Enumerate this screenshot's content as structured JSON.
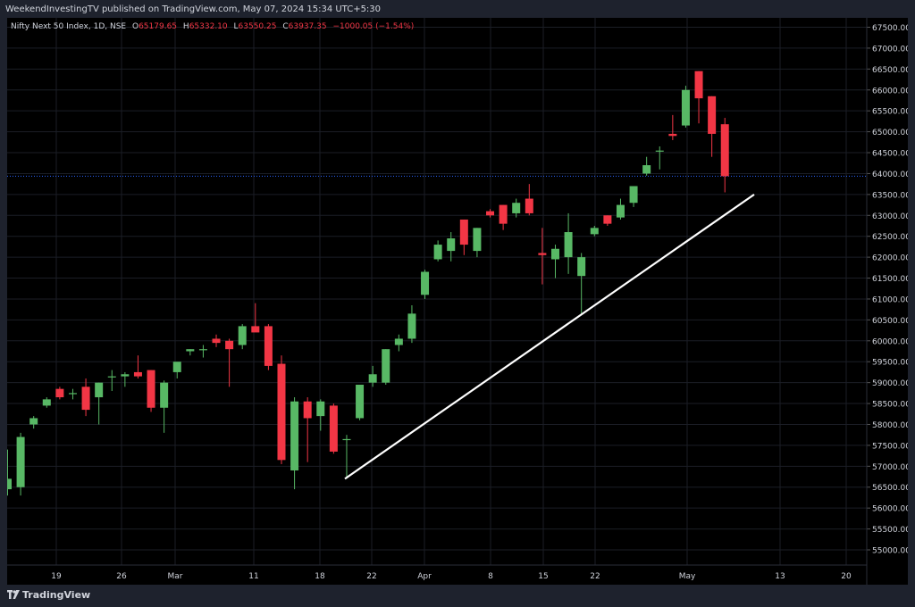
{
  "header": {
    "text": "WeekendInvestingTV published on TradingView.com, May 07, 2024 15:34 UTC+5:30"
  },
  "legend": {
    "symbol": "Nifty Next 50 Index, 1D, NSE",
    "o_label": "O",
    "o_value": "65179.65",
    "h_label": "H",
    "h_value": "65332.10",
    "l_label": "L",
    "l_value": "63550.25",
    "c_label": "C",
    "c_value": "63937.35",
    "change": "−1000.05 (−1.54%)"
  },
  "footer": {
    "brand": "TradingView"
  },
  "colors": {
    "up": "#58b865",
    "down": "#f23645",
    "background": "#000000",
    "grid": "#1b1e26",
    "text": "#d1d4dc",
    "trendline": "#ffffff",
    "last_price_line": "#2962ff"
  },
  "chart_data": {
    "type": "candlestick",
    "ylim": [
      54500,
      67800
    ],
    "y_ticks": [
      "55000.00",
      "55500.00",
      "56000.00",
      "56500.00",
      "57000.00",
      "57500.00",
      "58000.00",
      "58500.00",
      "59000.00",
      "59500.00",
      "60000.00",
      "60500.00",
      "61000.00",
      "61500.00",
      "62000.00",
      "62500.00",
      "63000.00",
      "63500.00",
      "64000.00",
      "64500.00",
      "65000.00",
      "65500.00",
      "66000.00",
      "66500.00",
      "67000.00",
      "67500.00"
    ],
    "x_ticks": [
      "19",
      "26",
      "Mar",
      "11",
      "18",
      "22",
      "Apr",
      "8",
      "15",
      "22",
      "May",
      "13",
      "20"
    ],
    "last_price": 63937.35,
    "candles": [
      {
        "o": 56450,
        "h": 57400,
        "l": 56300,
        "c": 56700
      },
      {
        "o": 56500,
        "h": 57800,
        "l": 56300,
        "c": 57700
      },
      {
        "o": 58000,
        "h": 58200,
        "l": 57900,
        "c": 58150
      },
      {
        "o": 58450,
        "h": 58650,
        "l": 58400,
        "c": 58600
      },
      {
        "o": 58850,
        "h": 58900,
        "l": 58600,
        "c": 58650
      },
      {
        "o": 58750,
        "h": 58850,
        "l": 58600,
        "c": 58750
      },
      {
        "o": 58900,
        "h": 59100,
        "l": 58200,
        "c": 58350
      },
      {
        "o": 58650,
        "h": 59000,
        "l": 58000,
        "c": 59000
      },
      {
        "o": 59150,
        "h": 59300,
        "l": 58800,
        "c": 59150
      },
      {
        "o": 59150,
        "h": 59250,
        "l": 58900,
        "c": 59200
      },
      {
        "o": 59250,
        "h": 59650,
        "l": 59100,
        "c": 59150
      },
      {
        "o": 59300,
        "h": 59300,
        "l": 58300,
        "c": 58400
      },
      {
        "o": 58400,
        "h": 59050,
        "l": 57800,
        "c": 59000
      },
      {
        "o": 59250,
        "h": 59400,
        "l": 59100,
        "c": 59500
      },
      {
        "o": 59750,
        "h": 59800,
        "l": 59650,
        "c": 59800
      },
      {
        "o": 59800,
        "h": 59900,
        "l": 59600,
        "c": 59800
      },
      {
        "o": 60050,
        "h": 60150,
        "l": 59850,
        "c": 59950
      },
      {
        "o": 60000,
        "h": 60050,
        "l": 58900,
        "c": 59800
      },
      {
        "o": 59900,
        "h": 60400,
        "l": 59800,
        "c": 60350
      },
      {
        "o": 60350,
        "h": 60900,
        "l": 60300,
        "c": 60200
      },
      {
        "o": 60350,
        "h": 60400,
        "l": 59300,
        "c": 59400
      },
      {
        "o": 59450,
        "h": 59650,
        "l": 57050,
        "c": 57150
      },
      {
        "o": 56900,
        "h": 58650,
        "l": 56450,
        "c": 58550
      },
      {
        "o": 58550,
        "h": 58650,
        "l": 57100,
        "c": 58150
      },
      {
        "o": 58200,
        "h": 58600,
        "l": 57850,
        "c": 58550
      },
      {
        "o": 58450,
        "h": 58500,
        "l": 57300,
        "c": 57350
      },
      {
        "o": 57650,
        "h": 57750,
        "l": 56700,
        "c": 57650
      },
      {
        "o": 58150,
        "h": 58950,
        "l": 58100,
        "c": 58950
      },
      {
        "o": 59000,
        "h": 59400,
        "l": 58900,
        "c": 59200
      },
      {
        "o": 59000,
        "h": 59800,
        "l": 58950,
        "c": 59800
      },
      {
        "o": 59900,
        "h": 60150,
        "l": 59750,
        "c": 60050
      },
      {
        "o": 60050,
        "h": 60850,
        "l": 59950,
        "c": 60650
      },
      {
        "o": 61100,
        "h": 61700,
        "l": 61000,
        "c": 61650
      },
      {
        "o": 61950,
        "h": 62400,
        "l": 61900,
        "c": 62300
      },
      {
        "o": 62150,
        "h": 62600,
        "l": 61900,
        "c": 62450
      },
      {
        "o": 62900,
        "h": 62900,
        "l": 62050,
        "c": 62300
      },
      {
        "o": 62150,
        "h": 62700,
        "l": 62000,
        "c": 62700
      },
      {
        "o": 63100,
        "h": 63150,
        "l": 62950,
        "c": 63000
      },
      {
        "o": 63250,
        "h": 63250,
        "l": 62650,
        "c": 62800
      },
      {
        "o": 63050,
        "h": 63400,
        "l": 62950,
        "c": 63300
      },
      {
        "o": 63400,
        "h": 63750,
        "l": 63000,
        "c": 63050
      },
      {
        "o": 62100,
        "h": 62700,
        "l": 61350,
        "c": 62050
      },
      {
        "o": 61950,
        "h": 62300,
        "l": 61500,
        "c": 62200
      },
      {
        "o": 62000,
        "h": 63050,
        "l": 61600,
        "c": 62600
      },
      {
        "o": 61550,
        "h": 62100,
        "l": 60650,
        "c": 62000
      },
      {
        "o": 62550,
        "h": 62750,
        "l": 62500,
        "c": 62700
      },
      {
        "o": 63000,
        "h": 63000,
        "l": 62750,
        "c": 62800
      },
      {
        "o": 62950,
        "h": 63400,
        "l": 62900,
        "c": 63250
      },
      {
        "o": 63300,
        "h": 63700,
        "l": 63200,
        "c": 63700
      },
      {
        "o": 64000,
        "h": 64400,
        "l": 63950,
        "c": 64200
      },
      {
        "o": 64550,
        "h": 64650,
        "l": 64100,
        "c": 64550
      },
      {
        "o": 64950,
        "h": 65400,
        "l": 64800,
        "c": 64900
      },
      {
        "o": 65150,
        "h": 66100,
        "l": 65100,
        "c": 66000
      },
      {
        "o": 66450,
        "h": 66450,
        "l": 65200,
        "c": 65800
      },
      {
        "o": 65850,
        "h": 65850,
        "l": 64400,
        "c": 64950
      },
      {
        "o": 65179.65,
        "h": 65332.1,
        "l": 63550.25,
        "c": 63937.35
      }
    ],
    "trendline": [
      {
        "from": {
          "x": "Mar 20",
          "y": 56700
        },
        "to": {
          "x": "May 10",
          "y": 63500
        }
      }
    ]
  }
}
